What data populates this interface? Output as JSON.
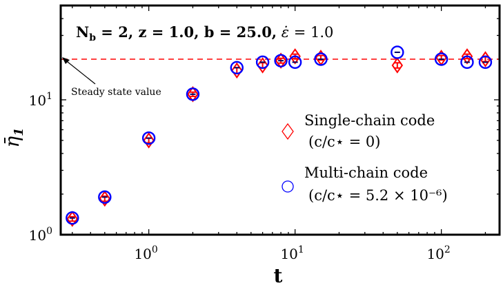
{
  "chart_data": {
    "type": "scatter",
    "title": "N_b = 2, z = 1.0, b = 25.0, ε̇ = 1.0",
    "title_parts": {
      "nb": "N",
      "nb_sub": "b",
      "rest_bold": " = 2, z = 1.0, b = 25.0,",
      "eps": " ε̇",
      "eps_val": " = 1.0"
    },
    "xlabel": "t",
    "ylabel": "η̄",
    "ylabel_sub": "1",
    "x_scale": "log",
    "y_scale": "log",
    "xlim": [
      0.25,
      250
    ],
    "ylim": [
      1.0,
      50
    ],
    "x_ticks": [
      {
        "value": 1,
        "base": "10",
        "exp": "0"
      },
      {
        "value": 10,
        "base": "10",
        "exp": "1"
      },
      {
        "value": 100,
        "base": "10",
        "exp": "2"
      }
    ],
    "y_ticks": [
      {
        "value": 1,
        "base": "10",
        "exp": "0"
      },
      {
        "value": 10,
        "base": "10",
        "exp": "1"
      }
    ],
    "reference_line": {
      "y": 20,
      "color": "#ff0000",
      "style": "dashed"
    },
    "annotation": {
      "text": "Steady state value",
      "arrow_to_y": 20
    },
    "series": [
      {
        "name": "Single-chain code",
        "name_line2": "(c/c⋆ = 0)",
        "marker": "diamond",
        "color": "#ff0000",
        "x": [
          0.3,
          0.5,
          1,
          2,
          4,
          6,
          8,
          10,
          15,
          50,
          100,
          150,
          200
        ],
        "y": [
          1.31,
          1.85,
          5.0,
          11.0,
          16.5,
          18.0,
          19.5,
          21.0,
          20.5,
          18.0,
          20.5,
          21.0,
          20.0
        ],
        "err": [
          0.05,
          0.08,
          0.2,
          0.4,
          0.8,
          0.8,
          0.8,
          0.8,
          0.8,
          0.8,
          0.8,
          0.8,
          0.8
        ]
      },
      {
        "name": "Multi-chain code",
        "name_line2": "(c/c⋆ = 5.2 × 10⁻⁶)",
        "marker": "circle",
        "color": "#0000ff",
        "x": [
          0.3,
          0.5,
          1,
          2,
          4,
          6,
          8,
          10,
          15,
          50,
          100,
          150,
          200
        ],
        "y": [
          1.33,
          1.9,
          5.2,
          11.0,
          17.3,
          19.0,
          19.5,
          19.0,
          20.0,
          22.5,
          20.0,
          19.0,
          19.0
        ],
        "err": [
          0.05,
          0.08,
          0.2,
          0.4,
          0.8,
          0.8,
          0.8,
          0.8,
          0.8,
          0.8,
          0.8,
          0.8,
          0.8
        ]
      }
    ],
    "legend": {
      "position": "right"
    }
  }
}
